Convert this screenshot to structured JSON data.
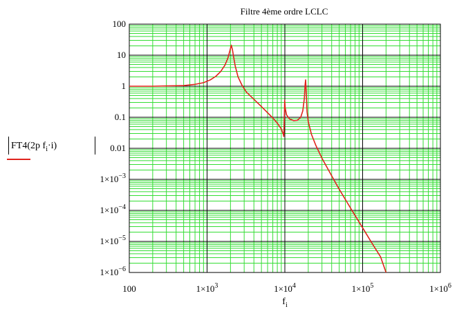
{
  "chart_data": {
    "type": "line",
    "title": "Filtre 4ème ordre LCLC",
    "xlabel": "f",
    "xlabel_sub": "i",
    "ylabel": {
      "prefix": "FT4",
      "arg_start": "2p f",
      "arg_sub": "i",
      "arg_end": "·i"
    },
    "x_scale": "log",
    "y_scale": "log",
    "xlim": [
      100,
      1000000
    ],
    "ylim": [
      1e-06,
      100
    ],
    "x_ticks": [
      {
        "value": 100,
        "base": "100",
        "exp": ""
      },
      {
        "value": 1000,
        "base": "1×10",
        "exp": "3"
      },
      {
        "value": 10000,
        "base": "1×10",
        "exp": "4"
      },
      {
        "value": 100000,
        "base": "1×10",
        "exp": "5"
      },
      {
        "value": 1000000,
        "base": "1×10",
        "exp": "6"
      }
    ],
    "y_ticks": [
      {
        "value": 100,
        "base": "100",
        "exp": ""
      },
      {
        "value": 10,
        "base": "10",
        "exp": ""
      },
      {
        "value": 1,
        "base": "1",
        "exp": ""
      },
      {
        "value": 0.1,
        "base": "0.1",
        "exp": ""
      },
      {
        "value": 0.01,
        "base": "0.01",
        "exp": ""
      },
      {
        "value": 0.001,
        "base": "1×10",
        "exp": "−3"
      },
      {
        "value": 0.0001,
        "base": "1×10",
        "exp": "−4"
      },
      {
        "value": 1e-05,
        "base": "1×10",
        "exp": "−5"
      },
      {
        "value": 1e-06,
        "base": "1×10",
        "exp": "−6"
      }
    ],
    "grid": true,
    "series": [
      {
        "color": "#e0221c",
        "points": [
          [
            100,
            1.0
          ],
          [
            200,
            1.0
          ],
          [
            300,
            1.02
          ],
          [
            500,
            1.05
          ],
          [
            700,
            1.15
          ],
          [
            900,
            1.3
          ],
          [
            1100,
            1.6
          ],
          [
            1300,
            2.1
          ],
          [
            1500,
            3.0
          ],
          [
            1700,
            4.8
          ],
          [
            1850,
            8.0
          ],
          [
            1950,
            13
          ],
          [
            2050,
            21
          ],
          [
            2120,
            15
          ],
          [
            2200,
            8.5
          ],
          [
            2300,
            4.5
          ],
          [
            2500,
            2.0
          ],
          [
            2800,
            1.1
          ],
          [
            3200,
            0.65
          ],
          [
            4000,
            0.38
          ],
          [
            5000,
            0.22
          ],
          [
            6000,
            0.14
          ],
          [
            7000,
            0.095
          ],
          [
            8000,
            0.065
          ],
          [
            9000,
            0.042
          ],
          [
            9500,
            0.03
          ],
          [
            9700,
            0.024
          ],
          [
            9850,
            0.1
          ],
          [
            9950,
            0.36
          ],
          [
            10100,
            0.2
          ],
          [
            10500,
            0.12
          ],
          [
            11500,
            0.088
          ],
          [
            13000,
            0.078
          ],
          [
            14500,
            0.08
          ],
          [
            16000,
            0.1
          ],
          [
            17000,
            0.16
          ],
          [
            17800,
            0.4
          ],
          [
            18200,
            1.1
          ],
          [
            18500,
            1.6
          ],
          [
            18800,
            0.7
          ],
          [
            19300,
            0.15
          ],
          [
            20000,
            0.072
          ],
          [
            22000,
            0.028
          ],
          [
            25000,
            0.0125
          ],
          [
            30000,
            0.0048
          ],
          [
            40000,
            0.0013
          ],
          [
            50000,
            0.00048
          ],
          [
            70000,
            0.000118
          ],
          [
            100000,
            2.75e-05
          ],
          [
            130000,
            9.3e-06
          ],
          [
            170000,
            3.2e-06
          ],
          [
            200000,
            1e-06
          ]
        ]
      }
    ]
  }
}
